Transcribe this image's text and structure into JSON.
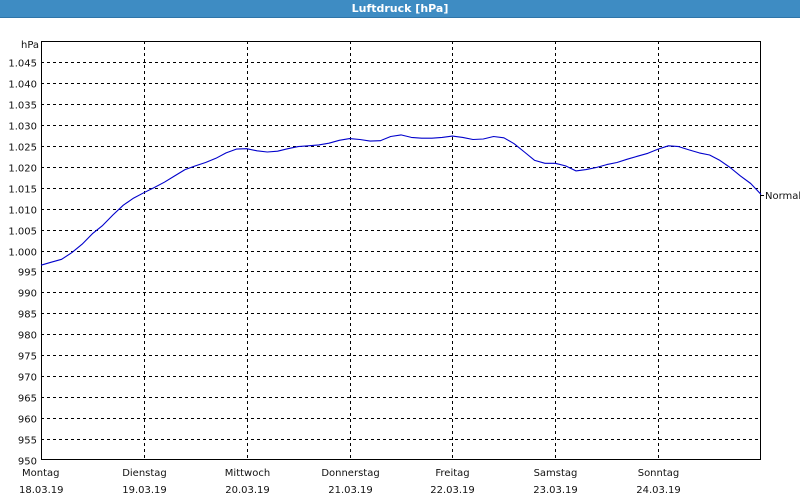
{
  "window": {
    "title": "Luftdruck [hPa]"
  },
  "chart_data": {
    "type": "line",
    "title": "Luftdruck [hPa]",
    "ylabel": "hPa",
    "ylim": [
      950,
      1050
    ],
    "xlim": [
      0,
      7
    ],
    "grid": true,
    "yticks": [
      {
        "v": 950,
        "label": "950"
      },
      {
        "v": 955,
        "label": "955"
      },
      {
        "v": 960,
        "label": "960"
      },
      {
        "v": 965,
        "label": "965"
      },
      {
        "v": 970,
        "label": "970"
      },
      {
        "v": 975,
        "label": "975"
      },
      {
        "v": 980,
        "label": "980"
      },
      {
        "v": 985,
        "label": "985"
      },
      {
        "v": 990,
        "label": "990"
      },
      {
        "v": 995,
        "label": "995"
      },
      {
        "v": 1000,
        "label": "1.000"
      },
      {
        "v": 1005,
        "label": "1.005"
      },
      {
        "v": 1010,
        "label": "1.010"
      },
      {
        "v": 1015,
        "label": "1.015"
      },
      {
        "v": 1020,
        "label": "1.020"
      },
      {
        "v": 1025,
        "label": "1.025"
      },
      {
        "v": 1030,
        "label": "1.030"
      },
      {
        "v": 1035,
        "label": "1.035"
      },
      {
        "v": 1040,
        "label": "1.040"
      },
      {
        "v": 1045,
        "label": "1.045"
      }
    ],
    "days": [
      {
        "x": 0,
        "day": "Montag",
        "date": "18.03.19"
      },
      {
        "x": 1,
        "day": "Dienstag",
        "date": "19.03.19"
      },
      {
        "x": 2,
        "day": "Mittwoch",
        "date": "20.03.19"
      },
      {
        "x": 3,
        "day": "Donnerstag",
        "date": "21.03.19"
      },
      {
        "x": 4,
        "day": "Freitag",
        "date": "22.03.19"
      },
      {
        "x": 5,
        "day": "Samstag",
        "date": "23.03.19"
      },
      {
        "x": 6,
        "day": "Sonntag",
        "date": "24.03.19"
      }
    ],
    "reference": {
      "label": "Normal",
      "value": 1013.25
    },
    "series": [
      {
        "color": "#0000cc",
        "points": [
          [
            0.0,
            996.5
          ],
          [
            0.1,
            997.2
          ],
          [
            0.2,
            997.9
          ],
          [
            0.3,
            999.5
          ],
          [
            0.4,
            1001.5
          ],
          [
            0.5,
            1004.0
          ],
          [
            0.6,
            1006.0
          ],
          [
            0.7,
            1008.5
          ],
          [
            0.8,
            1010.8
          ],
          [
            0.9,
            1012.5
          ],
          [
            1.0,
            1013.8
          ],
          [
            1.1,
            1015.0
          ],
          [
            1.2,
            1016.3
          ],
          [
            1.3,
            1017.8
          ],
          [
            1.4,
            1019.3
          ],
          [
            1.5,
            1020.2
          ],
          [
            1.6,
            1021.0
          ],
          [
            1.7,
            1022.0
          ],
          [
            1.8,
            1023.3
          ],
          [
            1.9,
            1024.2
          ],
          [
            2.0,
            1024.3
          ],
          [
            2.1,
            1023.8
          ],
          [
            2.2,
            1023.5
          ],
          [
            2.3,
            1023.7
          ],
          [
            2.4,
            1024.3
          ],
          [
            2.5,
            1024.8
          ],
          [
            2.6,
            1025.0
          ],
          [
            2.7,
            1025.2
          ],
          [
            2.8,
            1025.6
          ],
          [
            2.9,
            1026.3
          ],
          [
            3.0,
            1026.7
          ],
          [
            3.1,
            1026.5
          ],
          [
            3.2,
            1026.1
          ],
          [
            3.3,
            1026.2
          ],
          [
            3.4,
            1027.2
          ],
          [
            3.5,
            1027.6
          ],
          [
            3.6,
            1027.0
          ],
          [
            3.7,
            1026.8
          ],
          [
            3.8,
            1026.8
          ],
          [
            3.9,
            1027.0
          ],
          [
            4.0,
            1027.3
          ],
          [
            4.1,
            1027.0
          ],
          [
            4.2,
            1026.5
          ],
          [
            4.3,
            1026.6
          ],
          [
            4.4,
            1027.2
          ],
          [
            4.5,
            1026.9
          ],
          [
            4.6,
            1025.5
          ],
          [
            4.7,
            1023.5
          ],
          [
            4.8,
            1021.5
          ],
          [
            4.9,
            1020.8
          ],
          [
            5.0,
            1020.8
          ],
          [
            5.1,
            1020.2
          ],
          [
            5.2,
            1019.0
          ],
          [
            5.3,
            1019.3
          ],
          [
            5.4,
            1019.8
          ],
          [
            5.5,
            1020.5
          ],
          [
            5.6,
            1021.0
          ],
          [
            5.7,
            1021.8
          ],
          [
            5.8,
            1022.5
          ],
          [
            5.9,
            1023.2
          ],
          [
            6.0,
            1024.2
          ],
          [
            6.1,
            1025.0
          ],
          [
            6.2,
            1024.8
          ],
          [
            6.3,
            1024.0
          ],
          [
            6.4,
            1023.3
          ],
          [
            6.5,
            1022.8
          ],
          [
            6.6,
            1021.5
          ],
          [
            6.7,
            1019.8
          ],
          [
            6.8,
            1017.8
          ],
          [
            6.9,
            1016.0
          ],
          [
            7.0,
            1013.4
          ]
        ]
      }
    ]
  }
}
